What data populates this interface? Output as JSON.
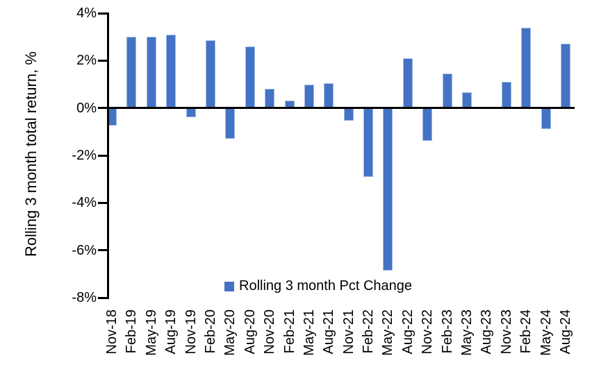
{
  "chart_data": {
    "type": "bar",
    "title": "",
    "xlabel": "",
    "ylabel": "Rolling 3 month total return, %",
    "legend": {
      "label": "Rolling 3 month Pct Change",
      "position": "bottom-center-inside"
    },
    "ylim": [
      -8,
      4
    ],
    "ytick_step": 2,
    "ytick_labels": [
      "4%",
      "2%",
      "0%",
      "-2%",
      "-4%",
      "-6%",
      "-8%"
    ],
    "grid": false,
    "bar_color": "#4472C4",
    "axis_color": "#000000",
    "categories": [
      "Nov-18",
      "Feb-19",
      "May-19",
      "Aug-19",
      "Nov-19",
      "Feb-20",
      "May-20",
      "Aug-20",
      "Nov-20",
      "Feb-21",
      "May-21",
      "Aug-21",
      "Nov-21",
      "Feb-22",
      "May-22",
      "Aug-22",
      "Nov-22",
      "Feb-23",
      "May-23",
      "Aug-23",
      "Nov-23",
      "Feb-24",
      "May-24",
      "Aug-24"
    ],
    "values": [
      -0.75,
      3.0,
      3.0,
      3.1,
      -0.4,
      2.85,
      -1.3,
      2.6,
      0.8,
      0.3,
      1.0,
      1.05,
      -0.55,
      -2.9,
      -6.85,
      2.1,
      -1.4,
      1.45,
      0.65,
      0.0,
      1.1,
      3.4,
      -0.9,
      2.7
    ]
  }
}
